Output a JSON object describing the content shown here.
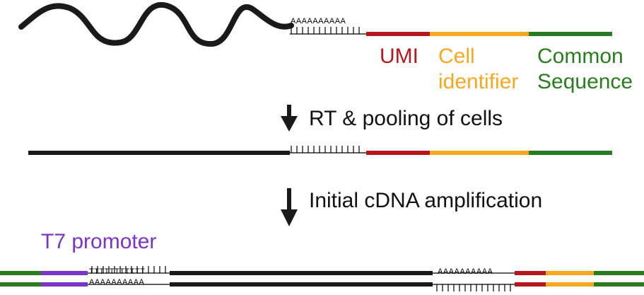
{
  "labels": {
    "umi": "UMI",
    "cell_identifier": "Cell\nidentifier",
    "common_sequence": "Common\nSequence",
    "step1": "RT & pooling of cells",
    "step2": "Initial cDNA amplification",
    "t7_promoter": "T7 promoter"
  },
  "sequences": {
    "polyA": "AAAAAAAAAA",
    "polyT": "TTTTTTTTTTT"
  },
  "colors": {
    "backbone": "#1a1a1a",
    "umi": "#b7171e",
    "cell_identifier": "#f7a823",
    "common_sequence": "#2a7d1f",
    "t7_promoter": "#7a34c7"
  }
}
